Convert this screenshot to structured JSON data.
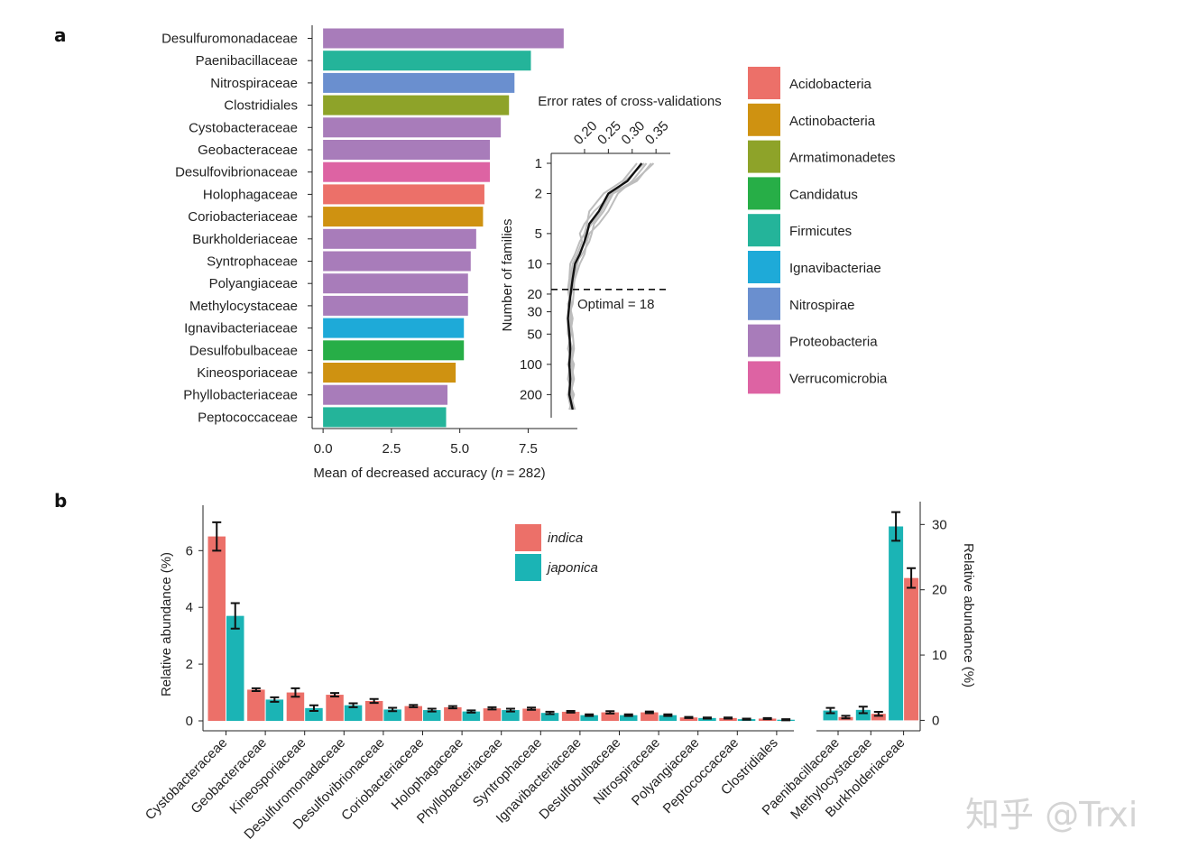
{
  "watermark": "知乎 @Trxi",
  "panel_a": {
    "label": "a",
    "xlabel_prefix": "Mean of decreased accuracy (",
    "xlabel_n": "n",
    "xlabel_suffix": " = 282)",
    "inset_title": "Error rates of cross-validations",
    "inset_ylabel": "Number of families",
    "optimal_text": "Optimal = 18"
  },
  "panel_b": {
    "label": "b",
    "ylabel_left": "Relative abundance (%)",
    "ylabel_right": "Relative abundance (%)"
  },
  "colors": {
    "Acidobacteria": "#EC7069",
    "Actinobacteria": "#CF9211",
    "Armatimonadetes": "#8EA329",
    "Candidatus": "#27AE47",
    "Firmicutes": "#24B49A",
    "Ignavibacteriae": "#1EAAD8",
    "Nitrospirae": "#6A8FCF",
    "Proteobacteria": "#A87CBA",
    "Verrucomicrobia": "#DD63A3",
    "indica": "#EC7069",
    "japonica": "#1BB4B5"
  },
  "chart_data": [
    {
      "type": "bar",
      "orientation": "horizontal",
      "xlabel": "Mean of decreased accuracy (n = 282)",
      "xlim": [
        -0.4,
        9.3
      ],
      "xticks": [
        "0.0",
        "2.5",
        "5.0",
        "7.5"
      ],
      "xtick_values": [
        0,
        2.5,
        5,
        7.5
      ],
      "categories": [
        "Desulfuromonadaceae",
        "Paenibacillaceae",
        "Nitrospiraceae",
        "Clostridiales",
        "Cystobacteraceae",
        "Geobacteraceae",
        "Desulfovibrionaceae",
        "Holophagaceae",
        "Coriobacteriaceae",
        "Burkholderiaceae",
        "Syntrophaceae",
        "Polyangiaceae",
        "Methylocystaceae",
        "Ignavibacteriaceae",
        "Desulfobulbaceae",
        "Kineosporiaceae",
        "Phyllobacteriaceae",
        "Peptococcaceae"
      ],
      "values": [
        8.8,
        7.6,
        7.0,
        6.8,
        6.5,
        6.1,
        6.1,
        5.9,
        5.85,
        5.6,
        5.4,
        5.3,
        5.3,
        5.15,
        5.15,
        4.85,
        4.55,
        4.5
      ],
      "phylum": [
        "Proteobacteria",
        "Firmicutes",
        "Nitrospirae",
        "Armatimonadetes",
        "Proteobacteria",
        "Proteobacteria",
        "Verrucomicrobia",
        "Acidobacteria",
        "Actinobacteria",
        "Proteobacteria",
        "Proteobacteria",
        "Proteobacteria",
        "Proteobacteria",
        "Ignavibacteriae",
        "Candidatus",
        "Actinobacteria",
        "Proteobacteria",
        "Firmicutes"
      ],
      "legend": [
        "Acidobacteria",
        "Actinobacteria",
        "Armatimonadetes",
        "Candidatus",
        "Firmicutes",
        "Ignavibacteriae",
        "Nitrospirae",
        "Proteobacteria",
        "Verrucomicrobia"
      ],
      "legend_position": "right"
    },
    {
      "type": "line",
      "title": "Error rates of cross-validations",
      "xlabel": "Error rates of cross-validations",
      "ylabel": "Number of families",
      "x_scale": "linear",
      "y_scale": "log",
      "xlim": [
        0.13,
        0.38
      ],
      "ylim": [
        1,
        300
      ],
      "xticks": [
        "0.20",
        "0.25",
        "0.30",
        "0.35"
      ],
      "xtick_values": [
        0.2,
        0.25,
        0.3,
        0.35
      ],
      "yticks": [
        "1",
        "2",
        "5",
        "10",
        "20",
        "30",
        "50",
        "100",
        "200"
      ],
      "ytick_values": [
        1,
        2,
        5,
        10,
        20,
        30,
        50,
        100,
        200
      ],
      "y": [
        1,
        1.5,
        2,
        3,
        4,
        5,
        6,
        8,
        10,
        14,
        18,
        25,
        35,
        50,
        70,
        100,
        140,
        200,
        282
      ],
      "series": [
        {
          "name": "mean",
          "values": [
            0.32,
            0.29,
            0.25,
            0.23,
            0.21,
            0.205,
            0.2,
            0.19,
            0.18,
            0.175,
            0.172,
            0.168,
            0.165,
            0.168,
            0.17,
            0.168,
            0.17,
            0.168,
            0.175
          ]
        },
        {
          "name": "cv1",
          "values": [
            0.34,
            0.31,
            0.26,
            0.22,
            0.2,
            0.19,
            0.195,
            0.185,
            0.175,
            0.17,
            0.168,
            0.172,
            0.17,
            0.175,
            0.178,
            0.172,
            0.178,
            0.17,
            0.18
          ]
        },
        {
          "name": "cv2",
          "values": [
            0.33,
            0.3,
            0.27,
            0.25,
            0.23,
            0.21,
            0.205,
            0.2,
            0.19,
            0.18,
            0.175,
            0.165,
            0.172,
            0.168,
            0.172,
            0.175,
            0.168,
            0.175,
            0.17
          ]
        },
        {
          "name": "cv3",
          "values": [
            0.31,
            0.28,
            0.24,
            0.21,
            0.205,
            0.2,
            0.19,
            0.18,
            0.17,
            0.168,
            0.165,
            0.17,
            0.168,
            0.172,
            0.165,
            0.178,
            0.172,
            0.165,
            0.172
          ]
        },
        {
          "name": "cv4",
          "values": [
            0.345,
            0.305,
            0.255,
            0.235,
            0.215,
            0.2,
            0.2,
            0.19,
            0.185,
            0.178,
            0.178,
            0.175,
            0.165,
            0.165,
            0.175,
            0.165,
            0.175,
            0.172,
            0.178
          ]
        },
        {
          "name": "cv5",
          "values": [
            0.325,
            0.285,
            0.26,
            0.24,
            0.22,
            0.215,
            0.21,
            0.195,
            0.18,
            0.172,
            0.17,
            0.168,
            0.175,
            0.17,
            0.168,
            0.17,
            0.165,
            0.178,
            0.168
          ]
        }
      ],
      "optimal_y": 18,
      "annotation": "Optimal = 18"
    },
    {
      "type": "bar",
      "orientation": "vertical",
      "ylabel": "Relative abundance (%)",
      "ylim": [
        -0.35,
        7.6
      ],
      "yticks": [
        "0",
        "2",
        "4",
        "6"
      ],
      "ytick_values": [
        0,
        2,
        4,
        6
      ],
      "categories": [
        "Cystobacteraceae",
        "Geobacteraceae",
        "Kineosporiaceae",
        "Desulfuromonadaceae",
        "Desulfovibrionaceae",
        "Coriobacteriaceae",
        "Holophagaceae",
        "Phyllobacteriaceae",
        "Syntrophaceae",
        "Ignavibacteriaceae",
        "Desulfobulbaceae",
        "Nitrospiraceae",
        "Polyangiaceae",
        "Peptococcaceae",
        "Clostridiales"
      ],
      "series": [
        {
          "name": "indica",
          "values": [
            6.5,
            1.1,
            1.0,
            0.92,
            0.7,
            0.52,
            0.48,
            0.44,
            0.43,
            0.32,
            0.3,
            0.3,
            0.12,
            0.1,
            0.08
          ],
          "errors": [
            0.5,
            0.05,
            0.15,
            0.06,
            0.07,
            0.04,
            0.04,
            0.04,
            0.04,
            0.03,
            0.04,
            0.03,
            0.02,
            0.02,
            0.02
          ]
        },
        {
          "name": "japonica",
          "values": [
            3.7,
            0.75,
            0.45,
            0.55,
            0.4,
            0.38,
            0.33,
            0.38,
            0.28,
            0.2,
            0.2,
            0.2,
            0.1,
            0.06,
            0.04
          ],
          "errors": [
            0.45,
            0.08,
            0.1,
            0.07,
            0.06,
            0.05,
            0.04,
            0.05,
            0.04,
            0.03,
            0.03,
            0.03,
            0.02,
            0.02,
            0.02
          ]
        }
      ],
      "legend": [
        "indica",
        "japonica"
      ],
      "legend_position": "top-center"
    },
    {
      "type": "bar",
      "orientation": "vertical",
      "ylabel": "Relative abundance (%)",
      "y_axis_side": "right",
      "ylim": [
        -1.6,
        33.5
      ],
      "yticks": [
        "0",
        "10",
        "20",
        "30"
      ],
      "ytick_values": [
        0,
        10,
        20,
        30
      ],
      "categories": [
        "Paenibacillaceae",
        "Methylocystaceae",
        "Burkholderiaceae"
      ],
      "series": [
        {
          "name": "indica",
          "values": [
            0.5,
            1.0,
            21.8
          ],
          "errors": [
            0.2,
            0.3,
            1.5
          ]
        },
        {
          "name": "japonica",
          "values": [
            1.5,
            1.6,
            29.7
          ],
          "errors": [
            0.4,
            0.5,
            2.2
          ]
        }
      ],
      "bar_order": [
        "japonica",
        "indica"
      ]
    }
  ]
}
